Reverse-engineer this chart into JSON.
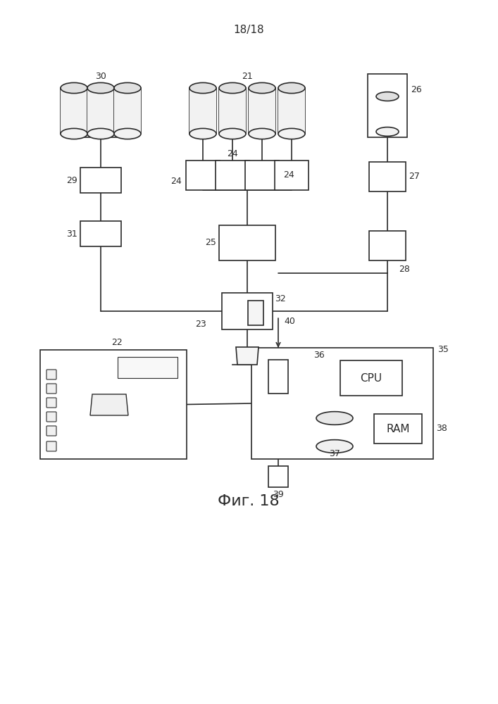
{
  "page_label": "18/18",
  "figure_label": "Фиг. 18",
  "bg_color": "#ffffff",
  "line_color": "#2a2a2a",
  "lw": 1.2
}
